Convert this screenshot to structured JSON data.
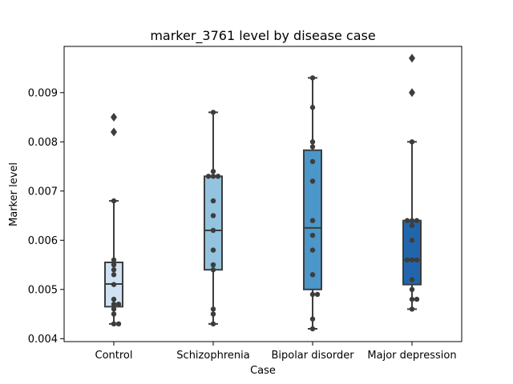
{
  "chart_data": {
    "type": "box",
    "title": "marker_3761 level by disease case",
    "xlabel": "Case",
    "ylabel": "Marker level",
    "ylim": [
      0.00394,
      0.00994
    ],
    "yticks": [
      "0.004",
      "0.005",
      "0.006",
      "0.007",
      "0.008",
      "0.009"
    ],
    "categories": [
      "Control",
      "Schizophrenia",
      "Bipolar disorder",
      "Major depression"
    ],
    "colors": [
      "#cfe1f2",
      "#93c3df",
      "#4b97c9",
      "#2166ac"
    ],
    "boxes": [
      {
        "q1": 0.00465,
        "median": 0.00511,
        "q3": 0.00555,
        "whisker_low": 0.0043,
        "whisker_high": 0.0068,
        "outliers": [
          0.0082,
          0.0085
        ]
      },
      {
        "q1": 0.0054,
        "median": 0.0062,
        "q3": 0.0073,
        "whisker_low": 0.0043,
        "whisker_high": 0.0086,
        "outliers": []
      },
      {
        "q1": 0.005,
        "median": 0.00625,
        "q3": 0.00783,
        "whisker_low": 0.0042,
        "whisker_high": 0.0093,
        "outliers": []
      },
      {
        "q1": 0.0051,
        "median": 0.0056,
        "q3": 0.0064,
        "whisker_low": 0.0046,
        "whisker_high": 0.008,
        "outliers": [
          0.009,
          0.0097
        ]
      }
    ],
    "points": [
      [
        0.0043,
        0.0043,
        0.0045,
        0.0046,
        0.0047,
        0.0047,
        0.0048,
        0.0051,
        0.0053,
        0.0054,
        0.0055,
        0.0056,
        0.0068,
        0.0082,
        0.0085
      ],
      [
        0.0043,
        0.0045,
        0.0046,
        0.0054,
        0.0055,
        0.0058,
        0.0062,
        0.0065,
        0.0068,
        0.0073,
        0.0073,
        0.0073,
        0.0074,
        0.0086
      ],
      [
        0.0042,
        0.0044,
        0.0049,
        0.0049,
        0.0053,
        0.0058,
        0.0061,
        0.0064,
        0.0072,
        0.0076,
        0.0079,
        0.008,
        0.0087,
        0.0093
      ],
      [
        0.0046,
        0.0048,
        0.0048,
        0.005,
        0.0052,
        0.0056,
        0.0056,
        0.0056,
        0.006,
        0.0063,
        0.0064,
        0.0064,
        0.0064,
        0.008,
        0.009,
        0.0097
      ]
    ]
  }
}
